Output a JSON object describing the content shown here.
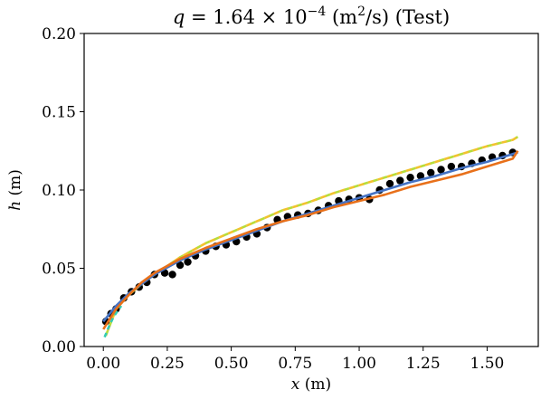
{
  "chart_data": {
    "type": "scatter",
    "title": {
      "var": "q",
      "eq": " = 1.64 × 10",
      "exp": "−4",
      "units_open": " (m",
      "units_sup": "2",
      "units_close": "/s) (Test)"
    },
    "xlabel": {
      "var": "x",
      "unit": " (m)"
    },
    "ylabel": {
      "var": "h",
      "unit": " (m)"
    },
    "xlim": [
      -0.075,
      1.7
    ],
    "ylim": [
      0.0,
      0.2
    ],
    "xticks": [
      "0.00",
      "0.25",
      "0.50",
      "0.75",
      "1.00",
      "1.25",
      "1.50"
    ],
    "yticks": [
      "0.00",
      "0.05",
      "0.10",
      "0.15",
      "0.20"
    ],
    "grid": false,
    "legend": "none",
    "colors": {
      "points": "#000000",
      "blue": "#4472c4",
      "orange": "#e8701a",
      "green": "#b7dd3a",
      "yellow": "#f2c230",
      "cyan": "#33ccb3"
    },
    "series": [
      {
        "kind": "points",
        "color": "#000000",
        "x": [
          0.01,
          0.03,
          0.05,
          0.08,
          0.11,
          0.14,
          0.17,
          0.2,
          0.24,
          0.27,
          0.3,
          0.33,
          0.36,
          0.4,
          0.44,
          0.48,
          0.52,
          0.56,
          0.6,
          0.64,
          0.68,
          0.72,
          0.76,
          0.8,
          0.84,
          0.88,
          0.92,
          0.96,
          1.0,
          1.04,
          1.08,
          1.12,
          1.16,
          1.2,
          1.24,
          1.28,
          1.32,
          1.36,
          1.4,
          1.44,
          1.48,
          1.52,
          1.56,
          1.6
        ],
        "y": [
          0.016,
          0.021,
          0.024,
          0.031,
          0.035,
          0.038,
          0.041,
          0.046,
          0.047,
          0.046,
          0.052,
          0.054,
          0.058,
          0.061,
          0.064,
          0.065,
          0.067,
          0.07,
          0.072,
          0.076,
          0.081,
          0.083,
          0.084,
          0.085,
          0.087,
          0.09,
          0.093,
          0.094,
          0.095,
          0.094,
          0.1,
          0.104,
          0.106,
          0.108,
          0.109,
          0.111,
          0.113,
          0.115,
          0.115,
          0.117,
          0.119,
          0.121,
          0.122,
          0.124
        ]
      },
      {
        "kind": "line",
        "color": "#b7dd3a",
        "dash": "6,5",
        "x": [
          0.01,
          0.05,
          0.1,
          0.15,
          0.2,
          0.3,
          0.4,
          0.5,
          0.6,
          0.7,
          0.8,
          0.9,
          1.0,
          1.1,
          1.2,
          1.3,
          1.4,
          1.5,
          1.6,
          1.62
        ],
        "y": [
          0.007,
          0.024,
          0.033,
          0.04,
          0.046,
          0.057,
          0.066,
          0.073,
          0.08,
          0.087,
          0.092,
          0.098,
          0.103,
          0.108,
          0.113,
          0.118,
          0.123,
          0.128,
          0.132,
          0.134
        ]
      },
      {
        "kind": "line",
        "color": "#f2c230",
        "dash": "6,5",
        "dashoffset": "5",
        "x": [
          0.01,
          0.05,
          0.1,
          0.15,
          0.2,
          0.3,
          0.4,
          0.5,
          0.6,
          0.7,
          0.8,
          0.9,
          1.0,
          1.1,
          1.2,
          1.3,
          1.4,
          1.5,
          1.6,
          1.62
        ],
        "y": [
          0.007,
          0.024,
          0.033,
          0.04,
          0.046,
          0.057,
          0.066,
          0.073,
          0.08,
          0.087,
          0.092,
          0.098,
          0.103,
          0.108,
          0.113,
          0.118,
          0.123,
          0.128,
          0.132,
          0.134
        ]
      },
      {
        "kind": "line",
        "color": "#33ccb3",
        "dash": "5,4",
        "x": [
          0.005,
          0.02,
          0.04,
          0.07
        ],
        "y": [
          0.006,
          0.012,
          0.019,
          0.026
        ]
      },
      {
        "kind": "line",
        "color": "#4472c4",
        "x": [
          0.0,
          0.05,
          0.1,
          0.15,
          0.2,
          0.3,
          0.4,
          0.5,
          0.6,
          0.7,
          0.8,
          0.9,
          1.0,
          1.1,
          1.2,
          1.3,
          1.4,
          1.5,
          1.6,
          1.62
        ],
        "y": [
          0.016,
          0.026,
          0.034,
          0.04,
          0.046,
          0.055,
          0.062,
          0.068,
          0.074,
          0.08,
          0.085,
          0.09,
          0.095,
          0.1,
          0.105,
          0.109,
          0.114,
          0.118,
          0.123,
          0.124
        ]
      },
      {
        "kind": "line",
        "color": "#e8701a",
        "x": [
          0.0,
          0.05,
          0.1,
          0.15,
          0.2,
          0.3,
          0.4,
          0.5,
          0.6,
          0.7,
          0.8,
          0.9,
          1.0,
          1.1,
          1.2,
          1.3,
          1.4,
          1.5,
          1.6,
          1.62
        ],
        "y": [
          0.011,
          0.024,
          0.033,
          0.041,
          0.047,
          0.056,
          0.063,
          0.069,
          0.075,
          0.08,
          0.084,
          0.089,
          0.093,
          0.097,
          0.102,
          0.106,
          0.11,
          0.115,
          0.12,
          0.125
        ]
      }
    ]
  }
}
